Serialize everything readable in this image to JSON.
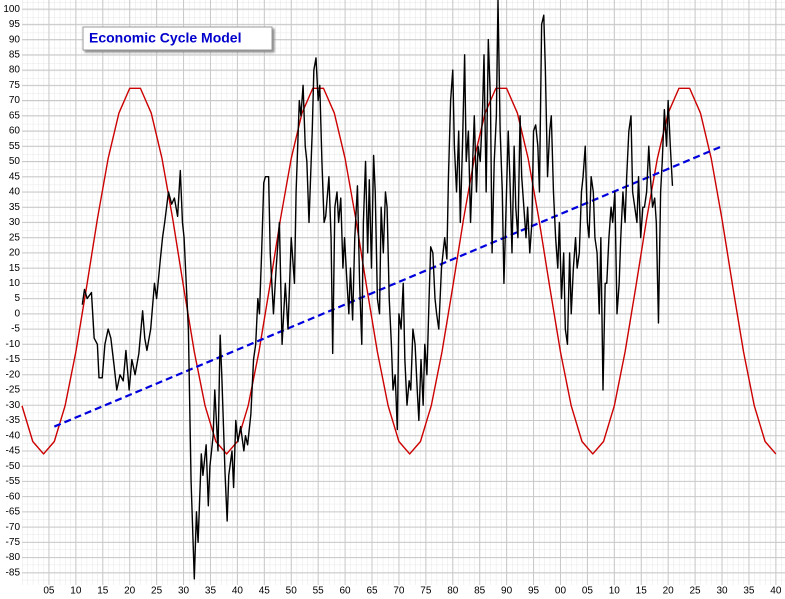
{
  "chart_data": {
    "type": "line",
    "title": "Economic Cycle Model",
    "xlim": [
      1900,
      2041.7
    ],
    "ylim": [
      -89,
      103
    ],
    "grid": true,
    "xticks": [
      {
        "value": 1905,
        "label": "05"
      },
      {
        "value": 1910,
        "label": "10"
      },
      {
        "value": 1915,
        "label": "15"
      },
      {
        "value": 1920,
        "label": "20"
      },
      {
        "value": 1925,
        "label": "25"
      },
      {
        "value": 1930,
        "label": "30"
      },
      {
        "value": 1935,
        "label": "35"
      },
      {
        "value": 1940,
        "label": "40"
      },
      {
        "value": 1945,
        "label": "45"
      },
      {
        "value": 1950,
        "label": "50"
      },
      {
        "value": 1955,
        "label": "55"
      },
      {
        "value": 1960,
        "label": "60"
      },
      {
        "value": 1965,
        "label": "65"
      },
      {
        "value": 1970,
        "label": "70"
      },
      {
        "value": 1975,
        "label": "75"
      },
      {
        "value": 1980,
        "label": "80"
      },
      {
        "value": 1985,
        "label": "85"
      },
      {
        "value": 1990,
        "label": "90"
      },
      {
        "value": 1995,
        "label": "95"
      },
      {
        "value": 2000,
        "label": "00"
      },
      {
        "value": 2005,
        "label": "05"
      },
      {
        "value": 2010,
        "label": "10"
      },
      {
        "value": 2015,
        "label": "15"
      },
      {
        "value": 2020,
        "label": "20"
      },
      {
        "value": 2025,
        "label": "25"
      },
      {
        "value": 2030,
        "label": "30"
      },
      {
        "value": 2035,
        "label": "35"
      },
      {
        "value": 2040,
        "label": "40"
      }
    ],
    "yticks": [
      100,
      95,
      90,
      85,
      80,
      75,
      70,
      65,
      60,
      55,
      50,
      45,
      40,
      35,
      30,
      25,
      20,
      15,
      10,
      5,
      0,
      -5,
      -10,
      -15,
      -20,
      -25,
      -30,
      -35,
      -40,
      -45,
      -50,
      -55,
      -60,
      -65,
      -70,
      -75,
      -80,
      -85
    ],
    "series": [
      {
        "color": "#cc0000",
        "line_style": "solid",
        "x": [
          1900,
          1902,
          1904,
          1906,
          1908,
          1910,
          1912,
          1914,
          1916,
          1918,
          1920,
          1922,
          1924,
          1926,
          1928,
          1930,
          1932,
          1934,
          1936,
          1938,
          1940,
          1942,
          1944,
          1946,
          1948,
          1950,
          1952,
          1954,
          1956,
          1958,
          1960,
          1962,
          1964,
          1966,
          1968,
          1970,
          1972,
          1974,
          1976,
          1978,
          1980,
          1982,
          1984,
          1986,
          1988,
          1990,
          1992,
          1994,
          1996,
          1998,
          2000,
          2002,
          2004,
          2006,
          2008,
          2010,
          2012,
          2014,
          2016,
          2018,
          2020,
          2022,
          2024,
          2026,
          2028,
          2030,
          2032,
          2034,
          2036,
          2038,
          2040
        ],
        "values": [
          -30.2,
          -41.9,
          -46.0,
          -41.9,
          -30.2,
          -12.5,
          8.9,
          31.1,
          51.0,
          65.9,
          74.0,
          74.0,
          65.9,
          51.0,
          31.1,
          8.9,
          -12.5,
          -30.2,
          -41.9,
          -46.0,
          -41.9,
          -30.2,
          -12.5,
          8.9,
          31.1,
          51.0,
          65.9,
          74.0,
          74.0,
          65.9,
          51.0,
          31.1,
          8.9,
          -12.5,
          -30.2,
          -41.9,
          -46.0,
          -41.9,
          -30.2,
          -12.5,
          8.9,
          31.1,
          51.0,
          65.9,
          74.0,
          74.0,
          65.9,
          51.0,
          31.1,
          8.9,
          -12.5,
          -30.2,
          -41.9,
          -46.0,
          -41.9,
          -30.2,
          -12.5,
          8.9,
          31.1,
          51.0,
          65.9,
          74.0,
          74.0,
          65.9,
          51.0,
          31.1,
          8.9,
          -12.5,
          -30.2,
          -41.9,
          -46.0
        ]
      },
      {
        "color": "#0000dd",
        "line_style": "dashed",
        "x": [
          1906,
          2030
        ],
        "values": [
          -37,
          55
        ]
      },
      {
        "color": "#000000",
        "line_style": "solid",
        "x": [
          1911.2,
          1911.6,
          1912.1,
          1912.9,
          1913.4,
          1914.0,
          1914.3,
          1914.9,
          1915.4,
          1916.0,
          1916.5,
          1917.1,
          1917.6,
          1918.2,
          1918.8,
          1919.3,
          1919.9,
          1920.4,
          1921.0,
          1921.7,
          1922.4,
          1922.8,
          1923.2,
          1923.9,
          1924.6,
          1925.0,
          1925.7,
          1926.1,
          1926.5,
          1927.2,
          1927.8,
          1928.3,
          1928.9,
          1929.4,
          1929.8,
          1930.1,
          1930.5,
          1930.9,
          1931.4,
          1932.0,
          1932.4,
          1932.7,
          1933.3,
          1933.6,
          1934.2,
          1934.6,
          1934.9,
          1935.5,
          1935.8,
          1936.4,
          1936.8,
          1937.1,
          1937.7,
          1938.1,
          1938.4,
          1939.0,
          1939.3,
          1939.7,
          1940.1,
          1940.6,
          1941.2,
          1941.5,
          1941.9,
          1942.5,
          1943.0,
          1943.4,
          1943.8,
          1944.1,
          1944.5,
          1944.9,
          1945.2,
          1945.8,
          1946.1,
          1946.7,
          1947.2,
          1947.8,
          1948.3,
          1948.9,
          1949.4,
          1950.0,
          1950.6,
          1950.9,
          1951.5,
          1951.8,
          1952.2,
          1952.6,
          1952.9,
          1953.3,
          1953.9,
          1954.2,
          1954.6,
          1955.0,
          1955.3,
          1955.7,
          1956.1,
          1956.4,
          1957.0,
          1957.4,
          1957.7,
          1958.1,
          1958.5,
          1958.8,
          1959.2,
          1959.6,
          1959.9,
          1960.3,
          1960.7,
          1961.0,
          1961.4,
          1961.8,
          1962.3,
          1962.7,
          1963.1,
          1963.4,
          1963.8,
          1964.2,
          1964.5,
          1964.9,
          1965.3,
          1965.6,
          1966.0,
          1966.4,
          1966.7,
          1967.1,
          1967.5,
          1967.8,
          1968.2,
          1968.6,
          1968.9,
          1969.3,
          1969.7,
          1970.0,
          1970.4,
          1970.8,
          1971.1,
          1971.5,
          1971.9,
          1972.2,
          1972.6,
          1973.0,
          1973.4,
          1973.7,
          1974.1,
          1974.5,
          1974.8,
          1975.2,
          1975.6,
          1975.9,
          1976.3,
          1976.7,
          1977.0,
          1977.4,
          1977.9,
          1978.5,
          1978.9,
          1979.2,
          1979.6,
          1980.0,
          1980.3,
          1980.7,
          1981.1,
          1981.4,
          1981.8,
          1982.2,
          1982.5,
          1982.9,
          1983.3,
          1983.6,
          1984.0,
          1984.4,
          1984.7,
          1985.1,
          1985.5,
          1985.8,
          1986.2,
          1986.6,
          1987.0,
          1987.3,
          1987.7,
          1988.1,
          1988.4,
          1988.8,
          1989.2,
          1989.5,
          1989.9,
          1990.3,
          1990.6,
          1991.0,
          1991.4,
          1991.7,
          1992.1,
          1992.5,
          1992.8,
          1993.2,
          1993.6,
          1993.9,
          1994.3,
          1994.7,
          1995.0,
          1995.4,
          1995.8,
          1996.1,
          1996.5,
          1996.9,
          1997.2,
          1997.6,
          1998.0,
          1998.3,
          1998.7,
          1999.1,
          1999.5,
          1999.8,
          2000.2,
          2000.6,
          2000.9,
          2001.3,
          2001.7,
          2002.0,
          2002.4,
          2002.8,
          2003.1,
          2003.5,
          2003.9,
          2004.2,
          2004.6,
          2005.0,
          2005.3,
          2005.7,
          2006.1,
          2006.4,
          2006.8,
          2007.2,
          2007.5,
          2007.9,
          2008.3,
          2008.6,
          2009.0,
          2009.4,
          2009.7,
          2010.1,
          2010.5,
          2010.9,
          2011.2,
          2011.6,
          2012.0,
          2012.3,
          2012.7,
          2013.1,
          2013.4,
          2013.8,
          2014.2,
          2014.5,
          2014.9,
          2015.3,
          2015.6,
          2016.0,
          2016.4,
          2016.7,
          2017.1,
          2017.5,
          2017.8,
          2018.2,
          2018.6,
          2018.9,
          2019.3,
          2019.7,
          2020.0,
          2020.4,
          2020.8
        ],
        "values": [
          3,
          8,
          5,
          7,
          -8,
          -10,
          -21,
          -21,
          -10,
          -5,
          -8,
          -17,
          -25,
          -20,
          -22,
          -12,
          -25,
          -15,
          -20,
          -13,
          1,
          -8,
          -12,
          -5,
          10,
          5,
          18,
          25,
          30,
          40,
          36,
          38,
          32,
          47,
          30,
          25,
          10,
          -5,
          -55,
          -87,
          -65,
          -75,
          -46,
          -53,
          -43,
          -63,
          -50,
          -40,
          -25,
          -45,
          -7,
          -20,
          -52,
          -68,
          -53,
          -45,
          -57,
          -35,
          -42,
          -37,
          -45,
          -40,
          -43,
          -33,
          -15,
          -10,
          5,
          0,
          20,
          43,
          45,
          45,
          20,
          0,
          15,
          30,
          -10,
          10,
          -5,
          25,
          10,
          40,
          70,
          65,
          75,
          55,
          50,
          30,
          60,
          80,
          84,
          70,
          75,
          50,
          30,
          32,
          45,
          25,
          -13,
          35,
          40,
          30,
          38,
          15,
          25,
          12,
          0,
          15,
          -2,
          25,
          42,
          10,
          -10,
          30,
          50,
          20,
          44,
          15,
          52,
          40,
          5,
          0,
          35,
          20,
          40,
          35,
          5,
          -10,
          -25,
          -20,
          -38,
          0,
          -5,
          10,
          -15,
          -30,
          -22,
          -25,
          -5,
          -10,
          -25,
          -35,
          -15,
          -30,
          -10,
          -20,
          5,
          22,
          20,
          5,
          0,
          -5,
          15,
          25,
          18,
          45,
          70,
          80,
          55,
          40,
          60,
          30,
          55,
          85,
          50,
          60,
          30,
          45,
          65,
          40,
          55,
          50,
          65,
          85,
          40,
          90,
          70,
          20,
          50,
          65,
          103,
          60,
          40,
          10,
          35,
          60,
          45,
          20,
          55,
          35,
          25,
          65,
          45,
          35,
          25,
          35,
          20,
          30,
          60,
          62,
          55,
          40,
          95,
          98,
          80,
          45,
          60,
          65,
          40,
          25,
          15,
          30,
          5,
          20,
          -5,
          -10,
          20,
          0,
          15,
          25,
          15,
          20,
          40,
          45,
          55,
          30,
          25,
          45,
          40,
          25,
          20,
          0,
          25,
          -25,
          10,
          10,
          25,
          35,
          30,
          40,
          0,
          10,
          25,
          40,
          30,
          45,
          60,
          65,
          40,
          35,
          30,
          45,
          25,
          35,
          35,
          40,
          55,
          45,
          35,
          38,
          30,
          -3,
          40,
          50,
          67,
          55,
          70,
          55,
          42
        ]
      }
    ]
  }
}
